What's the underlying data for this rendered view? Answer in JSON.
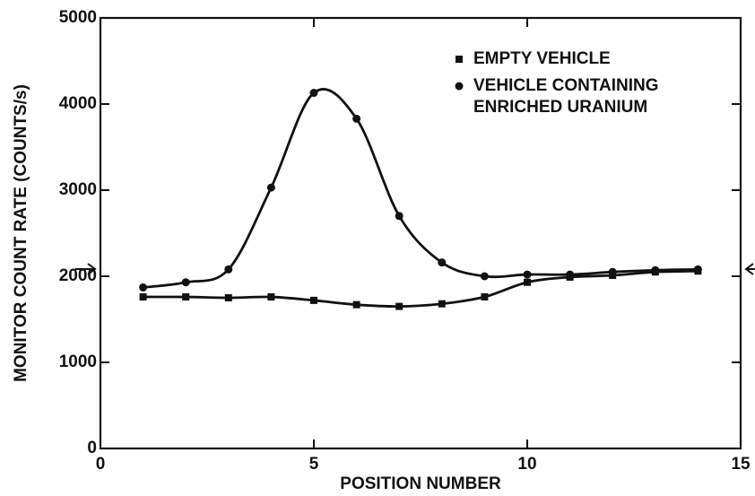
{
  "chart_data": {
    "type": "line",
    "xlabel": "POSITION NUMBER",
    "ylabel": "MONITOR COUNT RATE (COUNTS/s)",
    "x": [
      1,
      2,
      3,
      4,
      5,
      6,
      7,
      8,
      9,
      10,
      11,
      12,
      13,
      14
    ],
    "series": [
      {
        "name": "EMPTY VEHICLE",
        "color": "#111111",
        "marker": "square",
        "values": [
          1760,
          1760,
          1750,
          1760,
          1720,
          1670,
          1650,
          1680,
          1760,
          1930,
          1990,
          2010,
          2050,
          2060
        ]
      },
      {
        "name": "VEHICLE CONTAINING ENRICHED URANIUM",
        "color": "#111111",
        "marker": "circle",
        "values": [
          1870,
          1930,
          2080,
          3030,
          4130,
          3830,
          2700,
          2160,
          2000,
          2020,
          2020,
          2050,
          2070,
          2080
        ]
      }
    ],
    "xlim": [
      0,
      15
    ],
    "xticks": [
      0,
      5,
      10,
      15
    ],
    "ylim": [
      0,
      5000
    ],
    "yticks": [
      0,
      1000,
      2000,
      3000,
      4000,
      5000
    ],
    "legend": "upper right",
    "grid": false
  }
}
